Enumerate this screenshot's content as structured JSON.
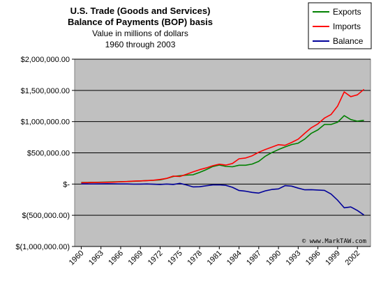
{
  "chart_data": {
    "type": "line",
    "title": "U.S. Trade (Goods and Services)",
    "title_line2": "Balance of Payments (BOP) basis",
    "subtitle": "Value in millions of dollars",
    "subtitle_line2": "1960 through 2003",
    "xlabel": "",
    "ylabel": "",
    "ylim": [
      -1000000,
      2000000
    ],
    "xlim": [
      1960,
      2003
    ],
    "x_ticks": [
      "1960",
      "1963",
      "1966",
      "1969",
      "1972",
      "1975",
      "1978",
      "1981",
      "1984",
      "1987",
      "1990",
      "1993",
      "1996",
      "1999",
      "2002"
    ],
    "y_ticks": [
      {
        "value": 2000000,
        "label": "$2,000,000.00"
      },
      {
        "value": 1500000,
        "label": "$1,500,000.00"
      },
      {
        "value": 1000000,
        "label": "$1,000,000.00"
      },
      {
        "value": 500000,
        "label": "$500,000.00"
      },
      {
        "value": 0,
        "label": "$-"
      },
      {
        "value": -500000,
        "label": "$(500,000.00)"
      },
      {
        "value": -1000000,
        "label": "$(1,000,000.00)"
      }
    ],
    "grid": true,
    "legend_position": "top-right",
    "credit": "© www.MarkTAW.com",
    "x": [
      1960,
      1961,
      1962,
      1963,
      1964,
      1965,
      1966,
      1967,
      1968,
      1969,
      1970,
      1971,
      1972,
      1973,
      1974,
      1975,
      1976,
      1977,
      1978,
      1979,
      1980,
      1981,
      1982,
      1983,
      1984,
      1985,
      1986,
      1987,
      1988,
      1989,
      1990,
      1991,
      1992,
      1993,
      1994,
      1995,
      1996,
      1997,
      1998,
      1999,
      2000,
      2001,
      2002,
      2003
    ],
    "series": [
      {
        "name": "Exports",
        "color": "#008000",
        "values": [
          25000,
          26000,
          27000,
          29000,
          33000,
          35000,
          38000,
          41000,
          45000,
          50000,
          56000,
          59000,
          67000,
          91000,
          121000,
          133000,
          143000,
          149000,
          187000,
          230000,
          280000,
          305000,
          283000,
          277000,
          302000,
          302000,
          320000,
          364000,
          445000,
          504000,
          552000,
          595000,
          633000,
          655000,
          721000,
          813000,
          868000,
          955000,
          955000,
          991000,
          1096000,
          1033000,
          1006000,
          1021000
        ]
      },
      {
        "name": "Imports",
        "color": "#ff0000",
        "values": [
          22000,
          23000,
          25000,
          26000,
          28000,
          31000,
          37000,
          40000,
          47000,
          51000,
          55000,
          62000,
          74000,
          91000,
          127000,
          121000,
          157000,
          194000,
          230000,
          258000,
          294000,
          318000,
          304000,
          329000,
          405000,
          417000,
          453000,
          509000,
          554000,
          591000,
          630000,
          620000,
          666000,
          720000,
          813000,
          903000,
          964000,
          1056000,
          1115000,
          1251000,
          1476000,
          1400000,
          1429000,
          1517000
        ]
      },
      {
        "name": "Balance",
        "color": "#000099",
        "values": [
          3000,
          3000,
          2000,
          3000,
          5000,
          4000,
          1000,
          1000,
          -2000,
          -1000,
          1000,
          -3000,
          -7000,
          0,
          -6000,
          12000,
          -14000,
          -45000,
          -43000,
          -28000,
          -14000,
          -13000,
          -21000,
          -52000,
          -103000,
          -115000,
          -133000,
          -145000,
          -109000,
          -87000,
          -78000,
          -25000,
          -33000,
          -65000,
          -92000,
          -90000,
          -96000,
          -101000,
          -160000,
          -260000,
          -380000,
          -367000,
          -423000,
          -496000
        ]
      }
    ]
  }
}
